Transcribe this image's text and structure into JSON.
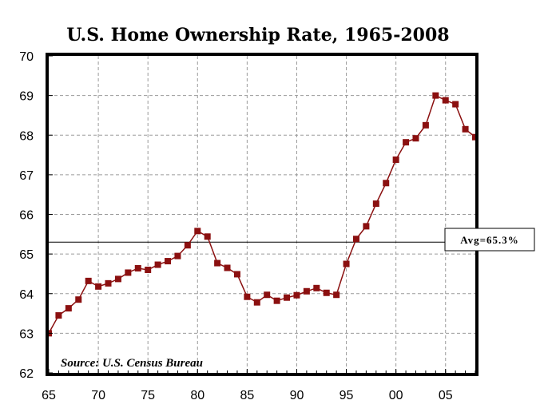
{
  "chart_data": {
    "type": "line",
    "title": "U.S. Home Ownership Rate, 1965-2008",
    "xlabel": "",
    "ylabel": "",
    "xlim": [
      1965,
      2008
    ],
    "ylim": [
      62,
      70
    ],
    "grid": true,
    "x_ticks": [
      1965,
      1970,
      1975,
      1980,
      1985,
      1990,
      1995,
      2000,
      2005
    ],
    "x_tick_labels": [
      "65",
      "70",
      "75",
      "80",
      "85",
      "90",
      "95",
      "00",
      "05"
    ],
    "y_ticks": [
      62,
      63,
      64,
      65,
      66,
      67,
      68,
      69,
      70
    ],
    "y_tick_labels": [
      "62",
      "63",
      "64",
      "65",
      "66",
      "67",
      "68",
      "69",
      "70"
    ],
    "series": [
      {
        "color": "#8b1010",
        "marker": "square",
        "x": [
          1965,
          1966,
          1967,
          1968,
          1969,
          1970,
          1971,
          1972,
          1973,
          1974,
          1975,
          1976,
          1977,
          1978,
          1979,
          1980,
          1981,
          1982,
          1983,
          1984,
          1985,
          1986,
          1987,
          1988,
          1989,
          1990,
          1991,
          1992,
          1993,
          1994,
          1995,
          1996,
          1997,
          1998,
          1999,
          2000,
          2001,
          2002,
          2003,
          2004,
          2005,
          2006,
          2007,
          2008
        ],
        "values": [
          63.0,
          63.45,
          63.63,
          63.85,
          64.32,
          64.18,
          64.26,
          64.37,
          64.53,
          64.64,
          64.6,
          64.73,
          64.82,
          64.95,
          65.22,
          65.58,
          65.44,
          64.77,
          64.65,
          64.49,
          63.92,
          63.78,
          63.97,
          63.82,
          63.9,
          63.96,
          64.06,
          64.14,
          64.02,
          63.97,
          64.75,
          65.38,
          65.7,
          66.27,
          66.79,
          67.38,
          67.82,
          67.92,
          68.25,
          69.0,
          68.88,
          68.78,
          68.15,
          67.95
        ]
      }
    ],
    "reference_line": {
      "value": 65.3,
      "label": "Avg=65.3%"
    },
    "annotations": [
      {
        "text": "Source: U.S. Census Bureau"
      }
    ],
    "line_color": "#8b1010"
  }
}
